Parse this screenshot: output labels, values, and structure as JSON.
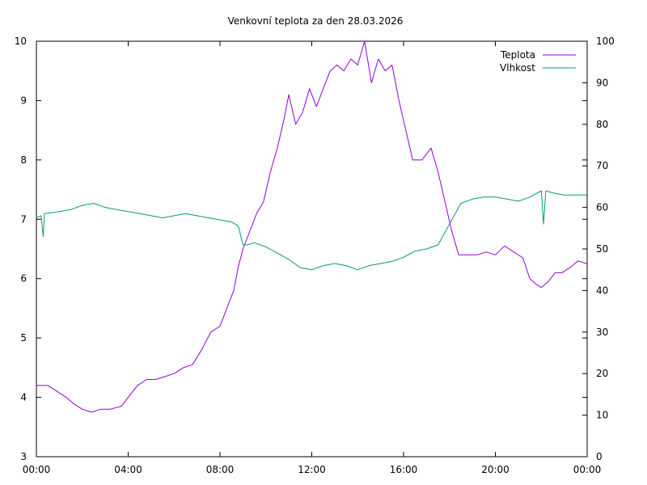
{
  "chart_data": {
    "type": "line",
    "title": "Venkovní teplota za den 28.03.2026",
    "xlabel": "",
    "ylabel": "",
    "y2label": "",
    "x_ticks": [
      "00:00",
      "04:00",
      "08:00",
      "12:00",
      "16:00",
      "20:00",
      "00:00"
    ],
    "xlim_hours": [
      0,
      24
    ],
    "ylim": [
      3,
      10
    ],
    "y_ticks": [
      3,
      4,
      5,
      6,
      7,
      8,
      9,
      10
    ],
    "y2lim": [
      0,
      100
    ],
    "y2_ticks": [
      0,
      10,
      20,
      30,
      40,
      50,
      60,
      70,
      80,
      90,
      100
    ],
    "grid": false,
    "legend_position": "top-right",
    "series": [
      {
        "name": "Teplota",
        "axis": "left",
        "color": "#9400d3",
        "points": [
          [
            0.0,
            4.2
          ],
          [
            0.5,
            4.2
          ],
          [
            0.9,
            4.1
          ],
          [
            1.3,
            4.0
          ],
          [
            1.6,
            3.9
          ],
          [
            2.0,
            3.8
          ],
          [
            2.4,
            3.75
          ],
          [
            2.8,
            3.8
          ],
          [
            3.2,
            3.8
          ],
          [
            3.7,
            3.85
          ],
          [
            4.0,
            4.0
          ],
          [
            4.4,
            4.2
          ],
          [
            4.8,
            4.3
          ],
          [
            5.2,
            4.3
          ],
          [
            5.6,
            4.35
          ],
          [
            6.0,
            4.4
          ],
          [
            6.4,
            4.5
          ],
          [
            6.8,
            4.55
          ],
          [
            7.2,
            4.8
          ],
          [
            7.6,
            5.1
          ],
          [
            8.0,
            5.2
          ],
          [
            8.3,
            5.5
          ],
          [
            8.6,
            5.8
          ],
          [
            8.8,
            6.2
          ],
          [
            9.0,
            6.5
          ],
          [
            9.3,
            6.8
          ],
          [
            9.6,
            7.1
          ],
          [
            9.9,
            7.3
          ],
          [
            10.2,
            7.8
          ],
          [
            10.5,
            8.2
          ],
          [
            10.8,
            8.7
          ],
          [
            11.0,
            9.1
          ],
          [
            11.3,
            8.6
          ],
          [
            11.6,
            8.8
          ],
          [
            11.9,
            9.2
          ],
          [
            12.2,
            8.9
          ],
          [
            12.5,
            9.2
          ],
          [
            12.8,
            9.5
          ],
          [
            13.1,
            9.6
          ],
          [
            13.4,
            9.5
          ],
          [
            13.7,
            9.7
          ],
          [
            14.0,
            9.6
          ],
          [
            14.3,
            10.0
          ],
          [
            14.6,
            9.3
          ],
          [
            14.9,
            9.7
          ],
          [
            15.2,
            9.5
          ],
          [
            15.5,
            9.6
          ],
          [
            15.8,
            9.0
          ],
          [
            16.1,
            8.5
          ],
          [
            16.4,
            8.0
          ],
          [
            16.8,
            8.0
          ],
          [
            17.2,
            8.2
          ],
          [
            17.5,
            7.8
          ],
          [
            17.8,
            7.3
          ],
          [
            18.1,
            6.8
          ],
          [
            18.4,
            6.4
          ],
          [
            18.8,
            6.4
          ],
          [
            19.2,
            6.4
          ],
          [
            19.6,
            6.45
          ],
          [
            20.0,
            6.4
          ],
          [
            20.4,
            6.55
          ],
          [
            20.8,
            6.45
          ],
          [
            21.2,
            6.35
          ],
          [
            21.5,
            6.0
          ],
          [
            21.8,
            5.9
          ],
          [
            22.0,
            5.85
          ],
          [
            22.3,
            5.95
          ],
          [
            22.6,
            6.1
          ],
          [
            22.9,
            6.1
          ],
          [
            23.3,
            6.2
          ],
          [
            23.6,
            6.3
          ],
          [
            24.0,
            6.25
          ]
        ]
      },
      {
        "name": "Vlhkost",
        "axis": "right",
        "color": "#009e73",
        "points": [
          [
            0.0,
            57.5
          ],
          [
            0.2,
            58.0
          ],
          [
            0.3,
            53.0
          ],
          [
            0.35,
            58.5
          ],
          [
            0.8,
            58.8
          ],
          [
            1.5,
            59.5
          ],
          [
            2.0,
            60.5
          ],
          [
            2.5,
            61.0
          ],
          [
            3.0,
            60.0
          ],
          [
            3.5,
            59.5
          ],
          [
            4.0,
            59.0
          ],
          [
            4.5,
            58.5
          ],
          [
            5.0,
            58.0
          ],
          [
            5.5,
            57.5
          ],
          [
            6.0,
            58.0
          ],
          [
            6.5,
            58.5
          ],
          [
            7.0,
            58.0
          ],
          [
            7.5,
            57.5
          ],
          [
            8.0,
            57.0
          ],
          [
            8.5,
            56.5
          ],
          [
            8.8,
            55.5
          ],
          [
            9.0,
            51.0
          ],
          [
            9.2,
            51.0
          ],
          [
            9.5,
            51.5
          ],
          [
            10.0,
            50.5
          ],
          [
            10.5,
            49.0
          ],
          [
            11.0,
            47.5
          ],
          [
            11.5,
            45.5
          ],
          [
            12.0,
            45.0
          ],
          [
            12.5,
            46.0
          ],
          [
            13.0,
            46.5
          ],
          [
            13.5,
            46.0
          ],
          [
            14.0,
            45.0
          ],
          [
            14.5,
            46.0
          ],
          [
            15.0,
            46.5
          ],
          [
            15.5,
            47.0
          ],
          [
            16.0,
            48.0
          ],
          [
            16.5,
            49.5
          ],
          [
            17.0,
            50.0
          ],
          [
            17.5,
            51.0
          ],
          [
            18.0,
            56.0
          ],
          [
            18.5,
            61.0
          ],
          [
            19.0,
            62.0
          ],
          [
            19.5,
            62.5
          ],
          [
            20.0,
            62.5
          ],
          [
            20.5,
            62.0
          ],
          [
            21.0,
            61.5
          ],
          [
            21.5,
            62.5
          ],
          [
            22.0,
            64.0
          ],
          [
            22.1,
            56.0
          ],
          [
            22.2,
            64.0
          ],
          [
            22.5,
            63.5
          ],
          [
            23.0,
            63.0
          ],
          [
            23.5,
            63.0
          ],
          [
            24.0,
            63.0
          ]
        ]
      }
    ]
  }
}
